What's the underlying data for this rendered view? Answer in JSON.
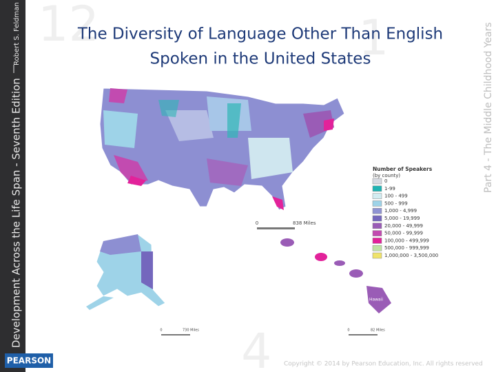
{
  "slide": {
    "title_lines": [
      "The Diversity of Language Other Than English",
      "Spoken in the United States"
    ],
    "sidebar_title": "Development Across the Life Span - Seventh Edition",
    "sidebar_author": "Robert S. Feldman",
    "side_caption": "Part 4 - The Middle Childhood Years",
    "logo": "PEARSON",
    "copyright": "Copyright © 2014 by Pearson Education, Inc. All rights reserved"
  },
  "map": {
    "legend": {
      "title": "Number of Speakers",
      "subtitle": "(by county)",
      "items": [
        {
          "label": "0",
          "color": "#d6dae2"
        },
        {
          "label": "1-99",
          "color": "#1fb3b3"
        },
        {
          "label": "100 - 499",
          "color": "#d2ecf1"
        },
        {
          "label": "500 - 999",
          "color": "#9ed3e8"
        },
        {
          "label": "1,000 - 4,999",
          "color": "#8f93d3"
        },
        {
          "label": "5,000 - 19,999",
          "color": "#7467bd"
        },
        {
          "label": "20,000 - 49,999",
          "color": "#9a5cb6"
        },
        {
          "label": "50,000 - 99,999",
          "color": "#c24bb0"
        },
        {
          "label": "100,000 - 499,999",
          "color": "#e2229a"
        },
        {
          "label": "500,000 - 999,999",
          "color": "#bfe3a3"
        },
        {
          "label": "1,000,000 - 3,500,000",
          "color": "#efe36a"
        }
      ]
    },
    "scales": [
      {
        "start": "0",
        "end": "838 Miles"
      },
      {
        "start": "0",
        "end": "730 Miles"
      },
      {
        "start": "0",
        "end": "82 Miles"
      }
    ],
    "hawaii_label": "Hawaii"
  }
}
